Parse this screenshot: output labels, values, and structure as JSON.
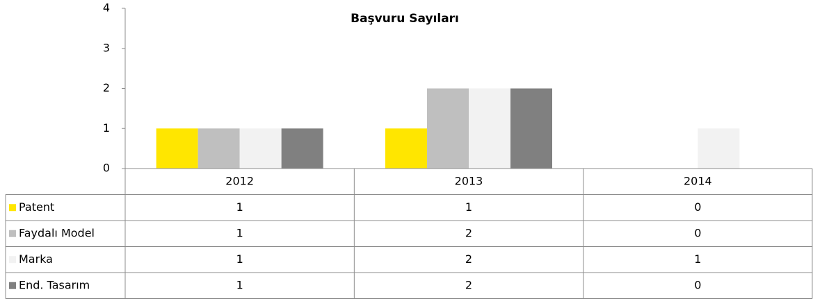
{
  "chart_data": {
    "type": "bar",
    "title": "Başvuru Sayıları",
    "categories": [
      "2012",
      "2013",
      "2014"
    ],
    "series": [
      {
        "name": "Patent",
        "color": "#FFE600",
        "values": [
          1,
          1,
          0
        ]
      },
      {
        "name": "Faydalı Model",
        "color": "#BFBFBF",
        "values": [
          1,
          2,
          0
        ]
      },
      {
        "name": "Marka",
        "color": "#F2F2F2",
        "values": [
          1,
          2,
          1
        ]
      },
      {
        "name": "End. Tasarım",
        "color": "#808080",
        "values": [
          1,
          2,
          0
        ]
      }
    ],
    "ylim": [
      0,
      4
    ],
    "yticks": [
      0,
      1,
      2,
      3,
      4
    ],
    "grid": false,
    "data_table": true
  }
}
